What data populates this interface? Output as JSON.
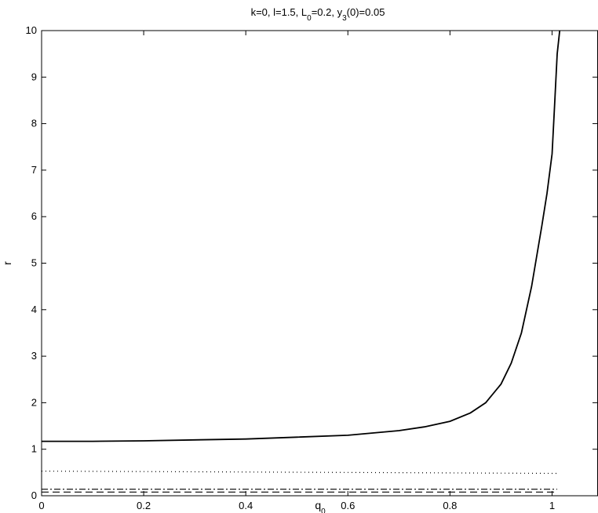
{
  "chart_data": {
    "type": "line",
    "title": {
      "parts": [
        {
          "text": "k=0, l=1.5, L",
          "shift": "none"
        },
        {
          "text": "0",
          "shift": "sub"
        },
        {
          "text": "=0.2, y",
          "shift": "none"
        },
        {
          "text": "3",
          "shift": "sub"
        },
        {
          "text": "(0)=0.05",
          "shift": "none"
        }
      ]
    },
    "xlabel": {
      "base": "q",
      "sub": "0"
    },
    "ylabel": "r",
    "xlim": [
      0,
      1.09
    ],
    "ylim": [
      0,
      10
    ],
    "x_ticks": [
      0,
      0.2,
      0.4,
      0.6,
      0.8,
      1
    ],
    "x_tick_labels": [
      "0",
      "0.2",
      "0.4",
      "0.6",
      "0.8",
      "1"
    ],
    "y_ticks": [
      0,
      1,
      2,
      3,
      4,
      5,
      6,
      7,
      8,
      9,
      10
    ],
    "y_tick_labels": [
      "0",
      "1",
      "2",
      "3",
      "4",
      "5",
      "6",
      "7",
      "8",
      "9",
      "10"
    ],
    "grid": false,
    "series": [
      {
        "style": "solid",
        "color": "#000000",
        "x": [
          0,
          0.1,
          0.2,
          0.3,
          0.4,
          0.5,
          0.6,
          0.7,
          0.75,
          0.8,
          0.84,
          0.87,
          0.9,
          0.92,
          0.94,
          0.96,
          0.98,
          0.99,
          1.0,
          1.005,
          1.01,
          1.015
        ],
        "y": [
          1.17,
          1.17,
          1.18,
          1.2,
          1.22,
          1.26,
          1.3,
          1.4,
          1.48,
          1.6,
          1.78,
          2.0,
          2.4,
          2.85,
          3.5,
          4.5,
          5.8,
          6.5,
          7.35,
          8.4,
          9.5,
          10.0
        ]
      },
      {
        "style": "dotted",
        "color": "#000000",
        "x": [
          0,
          1.01
        ],
        "y": [
          0.53,
          0.48
        ]
      },
      {
        "style": "dashdot",
        "color": "#000000",
        "x": [
          0,
          1.01
        ],
        "y": [
          0.14,
          0.14
        ]
      },
      {
        "style": "dashed",
        "color": "#000000",
        "x": [
          0,
          1.01
        ],
        "y": [
          0.08,
          0.08
        ]
      }
    ]
  }
}
